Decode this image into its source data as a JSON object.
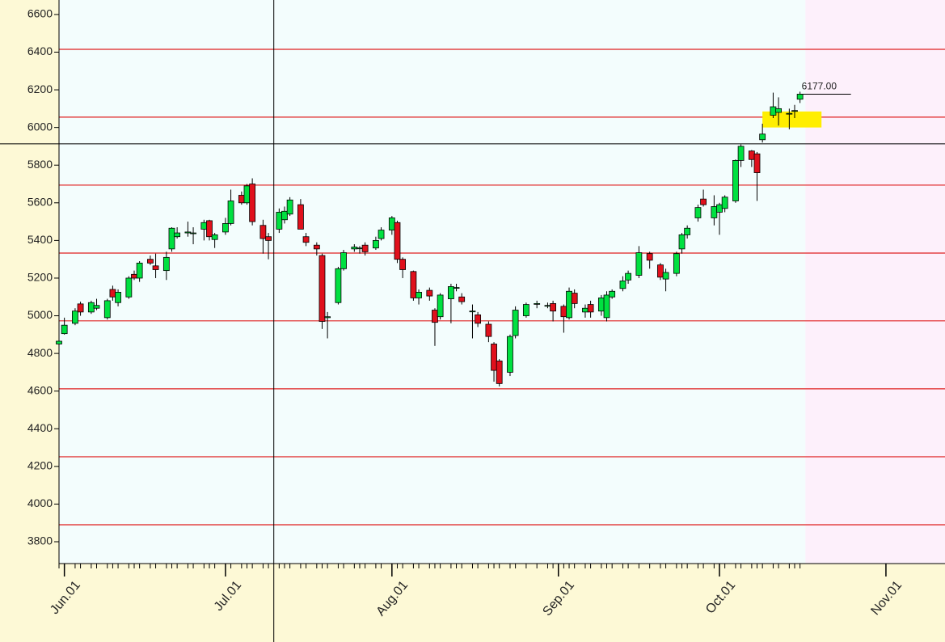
{
  "chart_data": {
    "type": "candlestick",
    "x": [
      "May.31",
      "Jun.01",
      "Jun.03",
      "Jun.04",
      "Jun.06",
      "Jun.07",
      "Jun.09",
      "Jun.10",
      "Jun.11",
      "Jun.13",
      "Jun.14",
      "Jun.15",
      "Jun.17",
      "Jun.18",
      "Jun.20",
      "Jun.21",
      "Jun.22",
      "Jun.24",
      "Jun.25",
      "Jun.27",
      "Jun.28",
      "Jun.29",
      "Jul.01",
      "Jul.02",
      "Jul.04",
      "Jul.05",
      "Jul.06",
      "Jul.08",
      "Jul.09",
      "Jul.11",
      "Jul.12",
      "Jul.13",
      "Jul.15",
      "Jul.16",
      "Jul.18",
      "Jul.19",
      "Jul.20",
      "Jul.22",
      "Jul.23",
      "Jul.25",
      "Jul.26",
      "Jul.27",
      "Jul.29",
      "Jul.30",
      "Aug.01",
      "Aug.02",
      "Aug.03",
      "Aug.05",
      "Aug.06",
      "Aug.08",
      "Aug.09",
      "Aug.10",
      "Aug.12",
      "Aug.13",
      "Aug.14",
      "Aug.16",
      "Aug.17",
      "Aug.19",
      "Aug.20",
      "Aug.21",
      "Aug.23",
      "Aug.24",
      "Aug.26",
      "Aug.28",
      "Aug.30",
      "Aug.31",
      "Sep.02",
      "Sep.03",
      "Sep.04",
      "Sep.06",
      "Sep.07",
      "Sep.09",
      "Sep.10",
      "Sep.11",
      "Sep.13",
      "Sep.14",
      "Sep.16",
      "Sep.18",
      "Sep.20",
      "Sep.21",
      "Sep.23",
      "Sep.24",
      "Sep.25",
      "Sep.27",
      "Sep.28",
      "Sep.30",
      "Oct.01",
      "Oct.02",
      "Oct.04",
      "Oct.05",
      "Oct.07",
      "Oct.08",
      "Oct.09",
      "Oct.11",
      "Oct.12",
      "Oct.14",
      "Oct.15",
      "Oct.16"
    ],
    "open": [
      4850,
      4905,
      4960,
      5063,
      5020,
      5040,
      4990,
      5140,
      5070,
      5100,
      5220,
      5200,
      5300,
      5265,
      5240,
      5355,
      5420,
      5440,
      5440,
      5460,
      5505,
      5405,
      5445,
      5490,
      5640,
      5600,
      5700,
      5480,
      5420,
      5460,
      5510,
      5540,
      5590,
      5420,
      5375,
      5320,
      4990,
      5070,
      5250,
      5355,
      5360,
      5375,
      5360,
      5410,
      5455,
      5495,
      5300,
      5235,
      5095,
      5135,
      5030,
      4995,
      5090,
      5150,
      5100,
      5025,
      5005,
      4955,
      4850,
      4760,
      4700,
      4895,
      5000,
      5065,
      5055,
      5065,
      5050,
      4990,
      5120,
      5020,
      5060,
      5025,
      4990,
      5100,
      5145,
      5190,
      5215,
      5330,
      5270,
      5195,
      5225,
      5355,
      5430,
      5520,
      5620,
      5520,
      5550,
      5570,
      5610,
      5825,
      5875,
      5860,
      5935,
      6065,
      6080,
      6075,
      6090,
      6150
    ],
    "high": [
      4880,
      4990,
      5040,
      5075,
      5080,
      5090,
      5090,
      5160,
      5140,
      5210,
      5240,
      5290,
      5320,
      5330,
      5340,
      5470,
      5470,
      5500,
      5470,
      5510,
      5510,
      5440,
      5520,
      5670,
      5660,
      5700,
      5730,
      5510,
      5440,
      5570,
      5580,
      5630,
      5620,
      5440,
      5390,
      5330,
      5020,
      5260,
      5350,
      5380,
      5370,
      5390,
      5420,
      5470,
      5530,
      5505,
      5310,
      5240,
      5140,
      5150,
      5040,
      5120,
      5170,
      5170,
      5120,
      5060,
      5020,
      4970,
      4860,
      4770,
      4900,
      5050,
      5070,
      5080,
      5070,
      5080,
      5060,
      5150,
      5140,
      5060,
      5080,
      5110,
      5130,
      5140,
      5210,
      5240,
      5370,
      5340,
      5280,
      5250,
      5340,
      5440,
      5480,
      5590,
      5670,
      5640,
      5600,
      5640,
      5830,
      5910,
      5880,
      5870,
      6020,
      6185,
      6160,
      6100,
      6120,
      6190
    ],
    "low": [
      4840,
      4900,
      4950,
      5000,
      5010,
      5030,
      4980,
      5080,
      5050,
      5090,
      5190,
      5180,
      5270,
      5200,
      5190,
      5340,
      5410,
      5420,
      5380,
      5400,
      5400,
      5360,
      5430,
      5480,
      5590,
      5590,
      5480,
      5330,
      5300,
      5440,
      5490,
      5530,
      5460,
      5370,
      5320,
      4930,
      4880,
      5060,
      5240,
      5340,
      5330,
      5320,
      5350,
      5400,
      5430,
      5280,
      5200,
      5080,
      5060,
      5080,
      4840,
      4980,
      4960,
      5130,
      5060,
      4880,
      4940,
      4860,
      4650,
      4625,
      4680,
      4880,
      4990,
      5040,
      5040,
      4970,
      4910,
      4980,
      5040,
      4990,
      4990,
      5000,
      4970,
      5090,
      5130,
      5170,
      5200,
      5250,
      5190,
      5130,
      5210,
      5330,
      5410,
      5500,
      5580,
      5480,
      5430,
      5550,
      5600,
      5790,
      5790,
      5610,
      5920,
      6050,
      6010,
      5990,
      6050,
      6130
    ],
    "close": [
      4865,
      4950,
      5025,
      5020,
      5070,
      5055,
      5080,
      5100,
      5125,
      5200,
      5200,
      5280,
      5280,
      5245,
      5310,
      5465,
      5440,
      5445,
      5440,
      5495,
      5420,
      5430,
      5490,
      5610,
      5600,
      5690,
      5500,
      5410,
      5400,
      5550,
      5555,
      5615,
      5460,
      5390,
      5355,
      4970,
      4995,
      5250,
      5335,
      5365,
      5360,
      5340,
      5400,
      5455,
      5520,
      5300,
      5245,
      5095,
      5125,
      5105,
      4965,
      5110,
      5155,
      5150,
      5075,
      5025,
      4960,
      4890,
      4710,
      4640,
      4890,
      5030,
      5060,
      5065,
      5055,
      5025,
      4995,
      5130,
      5065,
      5040,
      5020,
      5095,
      5110,
      5130,
      5185,
      5225,
      5335,
      5295,
      5205,
      5230,
      5330,
      5430,
      5465,
      5575,
      5590,
      5580,
      5590,
      5630,
      5825,
      5900,
      5830,
      5760,
      5965,
      6110,
      6100,
      6075,
      6090,
      6177
    ],
    "up_color": "#00e040",
    "down_color": "#e0101c",
    "xlim": [
      "May.31",
      "Nov.12"
    ],
    "xticks": [
      "Jun.01",
      "Jul.01",
      "Aug.01",
      "Sep.01",
      "Oct.01",
      "Nov.01"
    ],
    "ylim": [
      3684,
      6677
    ],
    "yticks": [
      3800,
      4000,
      4200,
      4400,
      4600,
      4800,
      5000,
      5200,
      5400,
      5600,
      5800,
      6000,
      6200,
      6400,
      6600
    ],
    "levels": [
      6415,
      6055,
      5694,
      5333,
      4973,
      4612,
      4251,
      3890
    ],
    "level_color": "#e02020",
    "crosshair": {
      "x": "Jul.10",
      "y": 5913
    },
    "highlight": {
      "x": [
        "Oct.09",
        "Oct.20"
      ],
      "y": [
        6000,
        6085
      ],
      "color": "#ffee00"
    },
    "future_start": "Oct.17",
    "last_price": {
      "value": 6177,
      "label": "6177.00"
    }
  }
}
